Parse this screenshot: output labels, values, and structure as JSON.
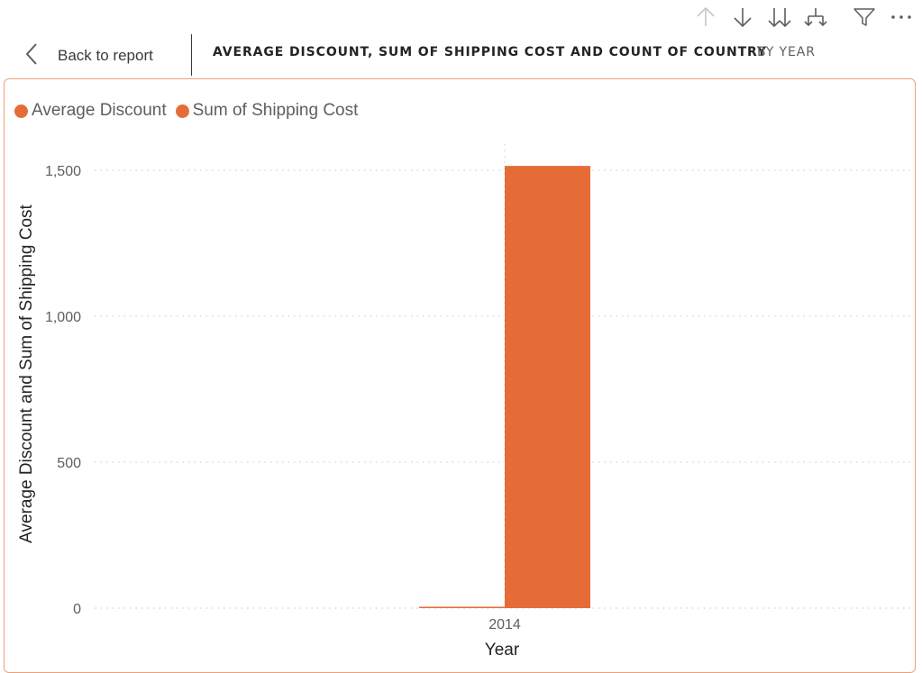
{
  "header": {
    "back_label": "Back to report",
    "title": "AVERAGE DISCOUNT, SUM OF SHIPPING COST AND COUNT OF COUNTRY",
    "subtitle": "BY YEAR"
  },
  "toolbar": {
    "icons": [
      "drill-up-icon",
      "drill-down-icon",
      "go-to-next-level-icon",
      "expand-hierarchy-icon",
      "filter-icon",
      "more-options-icon"
    ]
  },
  "colors": {
    "series": "#e66c37",
    "card_border": "#e8a37a"
  },
  "chart_data": {
    "type": "bar",
    "categories": [
      "2014"
    ],
    "series": [
      {
        "name": "Average Discount",
        "values": [
          4
        ]
      },
      {
        "name": "Sum of Shipping Cost",
        "values": [
          1515
        ]
      }
    ],
    "xlabel": "Year",
    "ylabel": "Average Discount and Sum of Shipping Cost",
    "ylim": [
      0,
      1600
    ],
    "yticks": [
      0,
      500,
      1000,
      1500
    ],
    "ytick_labels": [
      "0",
      "500",
      "1,000",
      "1,500"
    ],
    "grid": true,
    "legend_position": "top-left"
  }
}
